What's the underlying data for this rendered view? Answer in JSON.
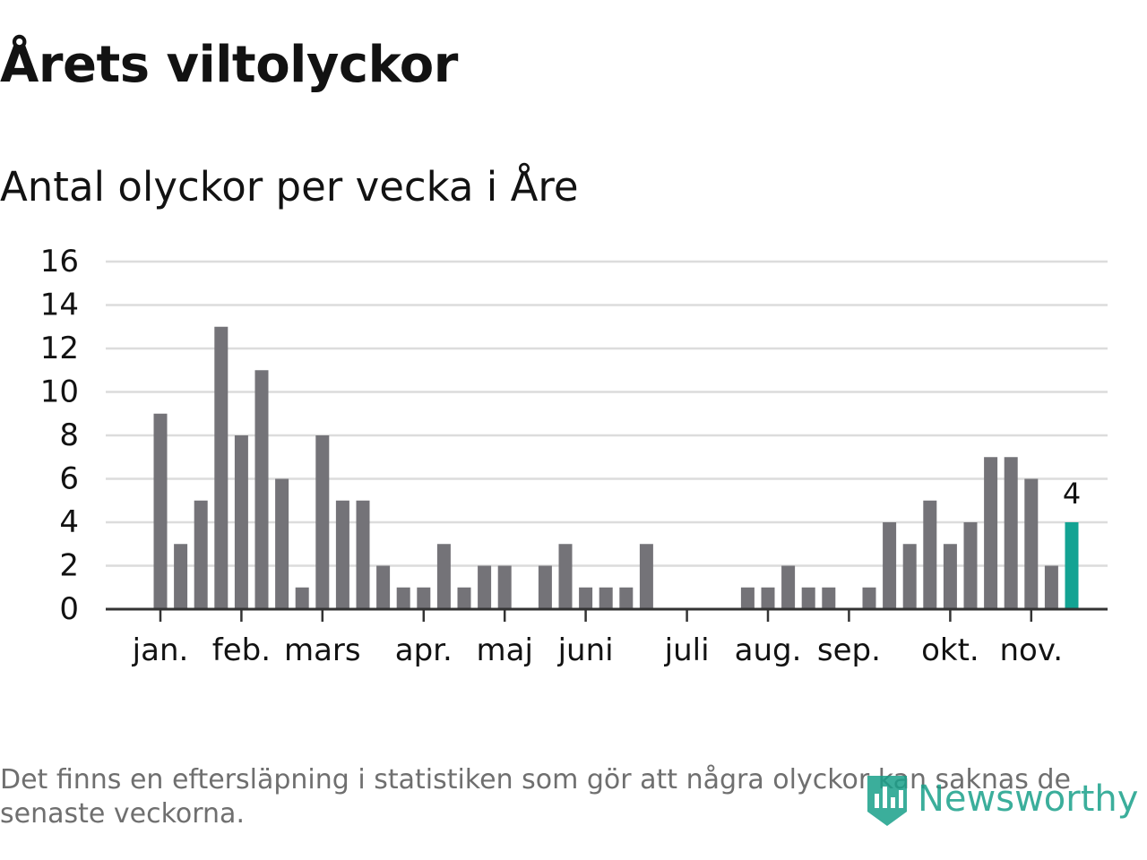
{
  "title": "Årets viltolyckor",
  "subtitle": "Antal olyckor per vecka i Åre",
  "footnote": "Det finns en eftersläpning i statistiken som gör att några olyckor kan saknas de senaste veckorna.",
  "logo": {
    "text": "Newsworthy",
    "icon": "newsworthy-logo-icon"
  },
  "colors": {
    "bar": "#747378",
    "highlight": "#13a393",
    "grid": "#dcdcdc",
    "axis": "#333333",
    "text": "#121212",
    "muted": "#6f6f6f",
    "brand": "#1aa08a"
  },
  "chart_data": {
    "type": "bar",
    "title": "Antal olyckor per vecka i Åre",
    "xlabel": "",
    "ylabel": "",
    "ylim": [
      0,
      16
    ],
    "yticks": [
      "0",
      "2",
      "4",
      "6",
      "8",
      "10",
      "12",
      "14",
      "16"
    ],
    "grid": true,
    "legend": "none",
    "values": [
      9,
      3,
      5,
      13,
      8,
      11,
      6,
      1,
      8,
      5,
      5,
      2,
      1,
      1,
      3,
      1,
      2,
      2,
      0,
      2,
      3,
      1,
      1,
      1,
      3,
      0,
      0,
      0,
      0,
      1,
      1,
      2,
      1,
      1,
      0,
      1,
      4,
      3,
      5,
      3,
      4,
      7,
      7,
      6,
      2,
      4
    ],
    "month_ticks": [
      {
        "label": "jan.",
        "bar_index": 0
      },
      {
        "label": "feb.",
        "bar_index": 4
      },
      {
        "label": "mars",
        "bar_index": 8
      },
      {
        "label": "apr.",
        "bar_index": 13
      },
      {
        "label": "maj",
        "bar_index": 17
      },
      {
        "label": "juni",
        "bar_index": 21
      },
      {
        "label": "juli",
        "bar_index": 26
      },
      {
        "label": "aug.",
        "bar_index": 30
      },
      {
        "label": "sep.",
        "bar_index": 34
      },
      {
        "label": "okt.",
        "bar_index": 39
      },
      {
        "label": "nov.",
        "bar_index": 43
      }
    ],
    "highlight_index": 45,
    "highlight_label": "4"
  }
}
